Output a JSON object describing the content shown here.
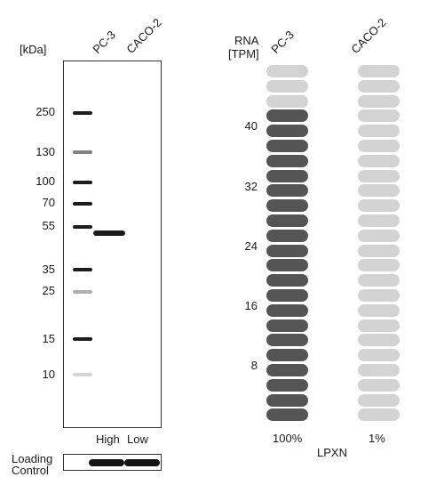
{
  "western_blot": {
    "unit_label": "[kDa]",
    "lanes": [
      "PC-3",
      "CACO-2"
    ],
    "markers": [
      "250",
      "130",
      "100",
      "70",
      "55",
      "35",
      "25",
      "15",
      "10"
    ],
    "expression_labels": [
      "High",
      "Low"
    ],
    "loading_control_label_1": "Loading",
    "loading_control_label_2": "Control"
  },
  "rna": {
    "title_1": "RNA",
    "title_2": "[TPM]",
    "samples": [
      "PC-3",
      "CACO-2"
    ],
    "y_ticks": [
      "40",
      "32",
      "24",
      "16",
      "8"
    ],
    "percents": [
      "100%",
      "1%"
    ],
    "gene": "LPXN",
    "colors": {
      "filled": "#555555",
      "empty": "#d3d3d3"
    }
  },
  "chart_data": {
    "type": "bar",
    "categories": [
      "PC-3",
      "CACO-2"
    ],
    "values_pct": [
      100,
      1
    ],
    "filled_segments": [
      21,
      0
    ],
    "total_segments": 24,
    "yticks": [
      8,
      16,
      24,
      32,
      40
    ]
  }
}
